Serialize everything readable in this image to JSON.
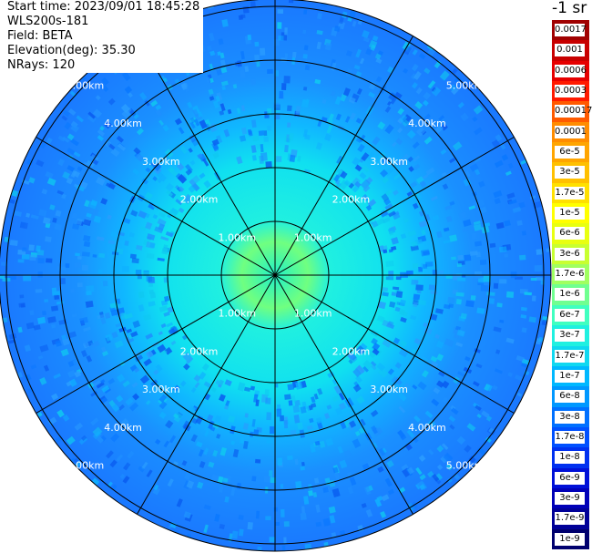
{
  "header": {
    "start_time": "Start time: 2023/09/01 18:45:28",
    "instrument": "WLS200s-181",
    "field": "Field: BETA",
    "elevation": "Elevation(deg): 35.30",
    "nrays": "NRays: 120"
  },
  "colorbar": {
    "unit_label": "-1 sr",
    "labels": [
      "0.0017",
      "0.001",
      "0.0006",
      "0.0003",
      "0.00017",
      "0.0001",
      "6e-5",
      "3e-5",
      "1.7e-5",
      "1e-5",
      "6e-6",
      "3e-6",
      "1.7e-6",
      "1e-6",
      "6e-7",
      "3e-7",
      "1.7e-7",
      "1e-7",
      "6e-8",
      "3e-8",
      "1.7e-8",
      "1e-8",
      "6e-9",
      "3e-9",
      "1.7e-9",
      "1e-9"
    ],
    "colors": [
      "#a00000",
      "#c80000",
      "#e60000",
      "#ff1a00",
      "#ff5a00",
      "#ff8c00",
      "#ffa500",
      "#ffc000",
      "#ffe000",
      "#ffff00",
      "#e8ff10",
      "#c8ff30",
      "#a0ff60",
      "#70ff90",
      "#40ffc0",
      "#20f0e0",
      "#10d8f0",
      "#00b8ff",
      "#0098ff",
      "#0070ff",
      "#0050ff",
      "#0030f0",
      "#0010d8",
      "#0000b8",
      "#000098",
      "#00006e"
    ]
  },
  "rings": {
    "labels": [
      "1.00km",
      "2.00km",
      "3.00km",
      "4.00km",
      "5.00km"
    ]
  },
  "scan": {
    "rays": 120
  }
}
